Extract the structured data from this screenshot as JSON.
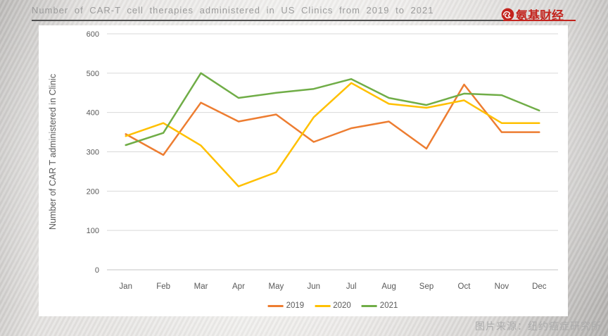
{
  "header": {
    "title": "Number of CAR-T cell therapies administered in US Clinics from 2019 to 2021",
    "logo": {
      "text": "氨基财经",
      "accent_color": "#c3241e"
    }
  },
  "footer": {
    "source": "图片来源：纽约癌症研究所"
  },
  "chart_data": {
    "type": "line",
    "title": "Number of CAR-T cell therapies administered in US Clinics from 2019 to 2021",
    "ylabel": "Number of CAR T administered in Clinic",
    "xlabel": "",
    "categories": [
      "Jan",
      "Feb",
      "Mar",
      "Apr",
      "May",
      "Jun",
      "Jul",
      "Aug",
      "Sep",
      "Oct",
      "Nov",
      "Dec"
    ],
    "ylim": [
      0,
      600
    ],
    "ytick_step": 100,
    "grid": true,
    "legend_position": "bottom",
    "colors": {
      "gridline": "#d9d9d9",
      "axis": "#c6c6c6",
      "tick_text": "#595959"
    },
    "series": [
      {
        "name": "2019",
        "color": "#ED7D31",
        "values": [
          345,
          292,
          425,
          377,
          395,
          325,
          360,
          377,
          308,
          471,
          350,
          350
        ]
      },
      {
        "name": "2020",
        "color": "#FFC000",
        "values": [
          340,
          373,
          316,
          212,
          248,
          388,
          475,
          422,
          412,
          431,
          373,
          373
        ]
      },
      {
        "name": "2021",
        "color": "#70AD47",
        "values": [
          317,
          348,
          500,
          437,
          450,
          460,
          485,
          437,
          419,
          448,
          444,
          405
        ]
      }
    ]
  }
}
